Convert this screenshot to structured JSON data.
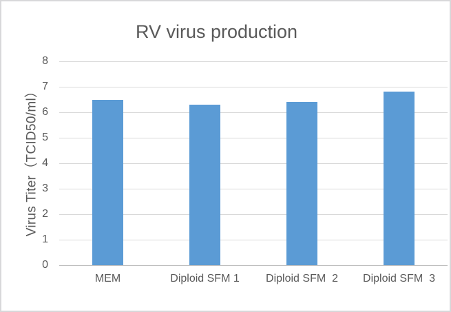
{
  "chart_data": {
    "type": "bar",
    "title": "RV virus production",
    "categories": [
      "MEM",
      "Diploid SFM 1",
      "Diploid SFM  2",
      "Diploid SFM  3"
    ],
    "values": [
      6.5,
      6.3,
      6.4,
      6.8
    ],
    "xlabel": "",
    "ylabel": "Virus Titer（TCID50/ml）",
    "ylim": [
      0,
      8
    ],
    "yticks": [
      0,
      1,
      2,
      3,
      4,
      5,
      6,
      7,
      8
    ],
    "grid": "horizontal",
    "legend_position": "none",
    "colors": {
      "bar": "#5b9bd5",
      "gridline": "#d9d9d9",
      "axis_line": "#bfbfbf",
      "text": "#595959",
      "frame_border": "#d8d8da",
      "background": "#ffffff"
    }
  }
}
